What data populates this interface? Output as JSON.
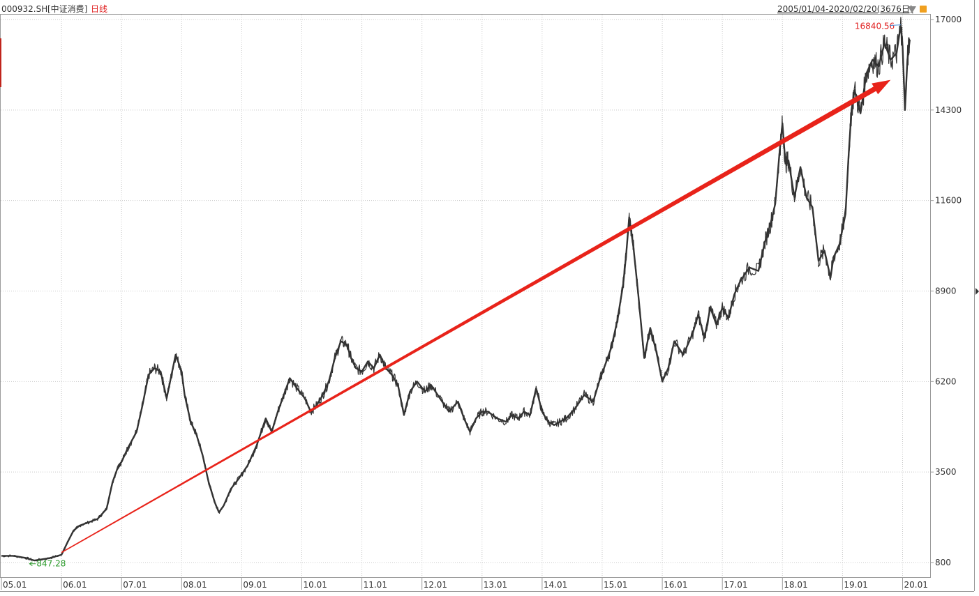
{
  "header": {
    "code": "000932.SH",
    "name": "[中证消费]",
    "period": "日线",
    "range": "2005/01/04-2020/02/20(3676日)"
  },
  "colors": {
    "price_line": "#333333",
    "trend_arrow": "#e8231a",
    "grid": "#c8c8c8",
    "high_label": "#e02020",
    "low_label": "#2a9a2a"
  },
  "chart_data": {
    "type": "line",
    "title": "",
    "xlabel": "",
    "ylabel": "",
    "ylim": [
      600,
      17100
    ],
    "y_ticks": [
      "17000",
      "14300",
      "11600",
      "8900",
      "6200",
      "3500",
      "800"
    ],
    "x_ticks": [
      "05.01",
      "06.01",
      "07.01",
      "08.01",
      "09.01",
      "10.01",
      "11.01",
      "12.01",
      "13.01",
      "14.01",
      "15.01",
      "16.01",
      "17.01",
      "18.01",
      "19.01",
      "20.01"
    ],
    "annotations": {
      "high": {
        "label": "16840.56",
        "x": 2019.97,
        "y": 16840.56
      },
      "low": {
        "label": "847.28",
        "x": 2005.55,
        "y": 847.28
      }
    },
    "trend_arrow": {
      "from": [
        2006.0,
        1100
      ],
      "to": [
        2019.8,
        15200
      ]
    },
    "series": [
      {
        "x": [
          2005.0,
          2005.2,
          2005.4,
          2005.55,
          2005.8,
          2006.0,
          2006.1,
          2006.2,
          2006.3,
          2006.45,
          2006.6,
          2006.75,
          2006.85,
          2006.95,
          2007.0,
          2007.1,
          2007.25,
          2007.35,
          2007.45,
          2007.55,
          2007.65,
          2007.75,
          2007.82,
          2007.9,
          2008.0,
          2008.05,
          2008.15,
          2008.25,
          2008.35,
          2008.45,
          2008.55,
          2008.62,
          2008.7,
          2008.82,
          2008.95,
          2009.1,
          2009.25,
          2009.4,
          2009.5,
          2009.6,
          2009.7,
          2009.8,
          2009.92,
          2010.05,
          2010.15,
          2010.25,
          2010.35,
          2010.45,
          2010.55,
          2010.65,
          2010.75,
          2010.82,
          2010.9,
          2011.0,
          2011.1,
          2011.2,
          2011.3,
          2011.4,
          2011.5,
          2011.6,
          2011.7,
          2011.8,
          2011.92,
          2012.05,
          2012.15,
          2012.3,
          2012.45,
          2012.6,
          2012.7,
          2012.8,
          2012.9,
          2013.0,
          2013.1,
          2013.25,
          2013.4,
          2013.5,
          2013.6,
          2013.7,
          2013.8,
          2013.9,
          2014.0,
          2014.1,
          2014.2,
          2014.3,
          2014.4,
          2014.55,
          2014.7,
          2014.85,
          2014.95,
          2015.05,
          2015.15,
          2015.25,
          2015.35,
          2015.4,
          2015.45,
          2015.52,
          2015.6,
          2015.7,
          2015.8,
          2015.9,
          2016.0,
          2016.1,
          2016.2,
          2016.35,
          2016.5,
          2016.6,
          2016.7,
          2016.8,
          2016.9,
          2017.0,
          2017.1,
          2017.2,
          2017.3,
          2017.45,
          2017.6,
          2017.7,
          2017.8,
          2017.88,
          2017.95,
          2018.0,
          2018.05,
          2018.1,
          2018.2,
          2018.3,
          2018.4,
          2018.5,
          2018.6,
          2018.7,
          2018.8,
          2018.85,
          2018.95,
          2019.05,
          2019.1,
          2019.15,
          2019.2,
          2019.3,
          2019.4,
          2019.5,
          2019.6,
          2019.7,
          2019.8,
          2019.9,
          2019.97,
          2020.0,
          2020.04,
          2020.08,
          2020.12
        ],
        "y": [
          1000,
          1000,
          940,
          860,
          930,
          1030,
          1400,
          1750,
          1900,
          2000,
          2100,
          2400,
          3200,
          3700,
          3800,
          4200,
          4700,
          5500,
          6400,
          6600,
          6500,
          5700,
          6300,
          7000,
          6500,
          5800,
          5000,
          4600,
          4000,
          3200,
          2600,
          2300,
          2500,
          3000,
          3300,
          3700,
          4300,
          5100,
          4700,
          5300,
          5800,
          6300,
          6000,
          5700,
          5300,
          5500,
          5800,
          6200,
          6900,
          7400,
          7300,
          6900,
          6600,
          6500,
          6800,
          6600,
          7000,
          6600,
          6400,
          6100,
          5200,
          5900,
          6200,
          5900,
          6100,
          5700,
          5300,
          5600,
          5100,
          4700,
          5100,
          5300,
          5300,
          5100,
          5000,
          5200,
          5100,
          5300,
          5200,
          6000,
          5300,
          5000,
          4900,
          5000,
          5100,
          5400,
          5800,
          5600,
          6200,
          6700,
          7200,
          8000,
          9100,
          10000,
          11100,
          10200,
          8800,
          6900,
          7800,
          7100,
          6200,
          6600,
          7400,
          7000,
          7600,
          8200,
          7500,
          8400,
          7900,
          8400,
          8100,
          8800,
          9200,
          9600,
          9500,
          10300,
          10900,
          11500,
          13000,
          13900,
          12700,
          12800,
          11700,
          12600,
          11700,
          11400,
          9800,
          10100,
          9300,
          9900,
          10300,
          11200,
          12900,
          14300,
          14900,
          14200,
          15400,
          15800,
          15600,
          16300,
          15800,
          16000,
          16840,
          16200,
          14300,
          15800,
          16400
        ]
      }
    ]
  }
}
